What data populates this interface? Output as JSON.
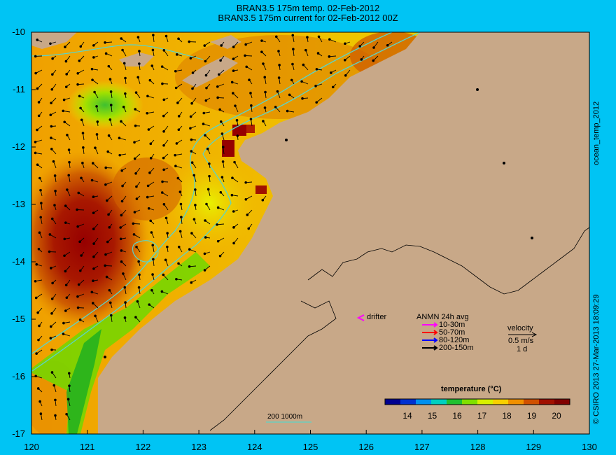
{
  "header": {
    "title_line1": "BRAN3.5 175m temp. 02-Feb-2012",
    "title_line2": "BRAN3.5 175m current for 02-Feb-2012 00Z"
  },
  "axes": {
    "x_ticks": [
      "120",
      "121",
      "122",
      "123",
      "124",
      "125",
      "126",
      "127",
      "128",
      "129",
      "130"
    ],
    "y_ticks": [
      "-10",
      "-11",
      "-12",
      "-13",
      "-14",
      "-15",
      "-16",
      "-17"
    ]
  },
  "legend": {
    "drifter_label": "drifter",
    "anmn_title": "ANMN 24h avg",
    "anmn_items": [
      {
        "label": "10-30m",
        "color": "#ff00ff"
      },
      {
        "label": "50-70m",
        "color": "#ff0000"
      },
      {
        "label": "80-120m",
        "color": "#0000ff"
      },
      {
        "label": "200-150m",
        "color": "#000000"
      }
    ],
    "velocity_title": "velocity",
    "velocity_value": "0.5 m/s",
    "velocity_time": "1 d",
    "colorbar_title": "temperature (°C)",
    "colorbar_ticks": [
      "14",
      "15",
      "16",
      "17",
      "18",
      "19",
      "20"
    ],
    "colorbar_colors": [
      "#000090",
      "#0030d0",
      "#0090f0",
      "#00d0c0",
      "#20c030",
      "#80e000",
      "#d8f000",
      "#f8d000",
      "#f09000",
      "#d05000",
      "#a01000",
      "#800000"
    ],
    "contour_label": "200  1000m"
  },
  "side": {
    "product": "ocean_temp_2012",
    "credit": "© CSIRO 2013   27-Mar-2013 18:09:29"
  },
  "colors": {
    "background": "#00c4f4",
    "land": "#c8a888",
    "contour": "#5ad4c8"
  }
}
